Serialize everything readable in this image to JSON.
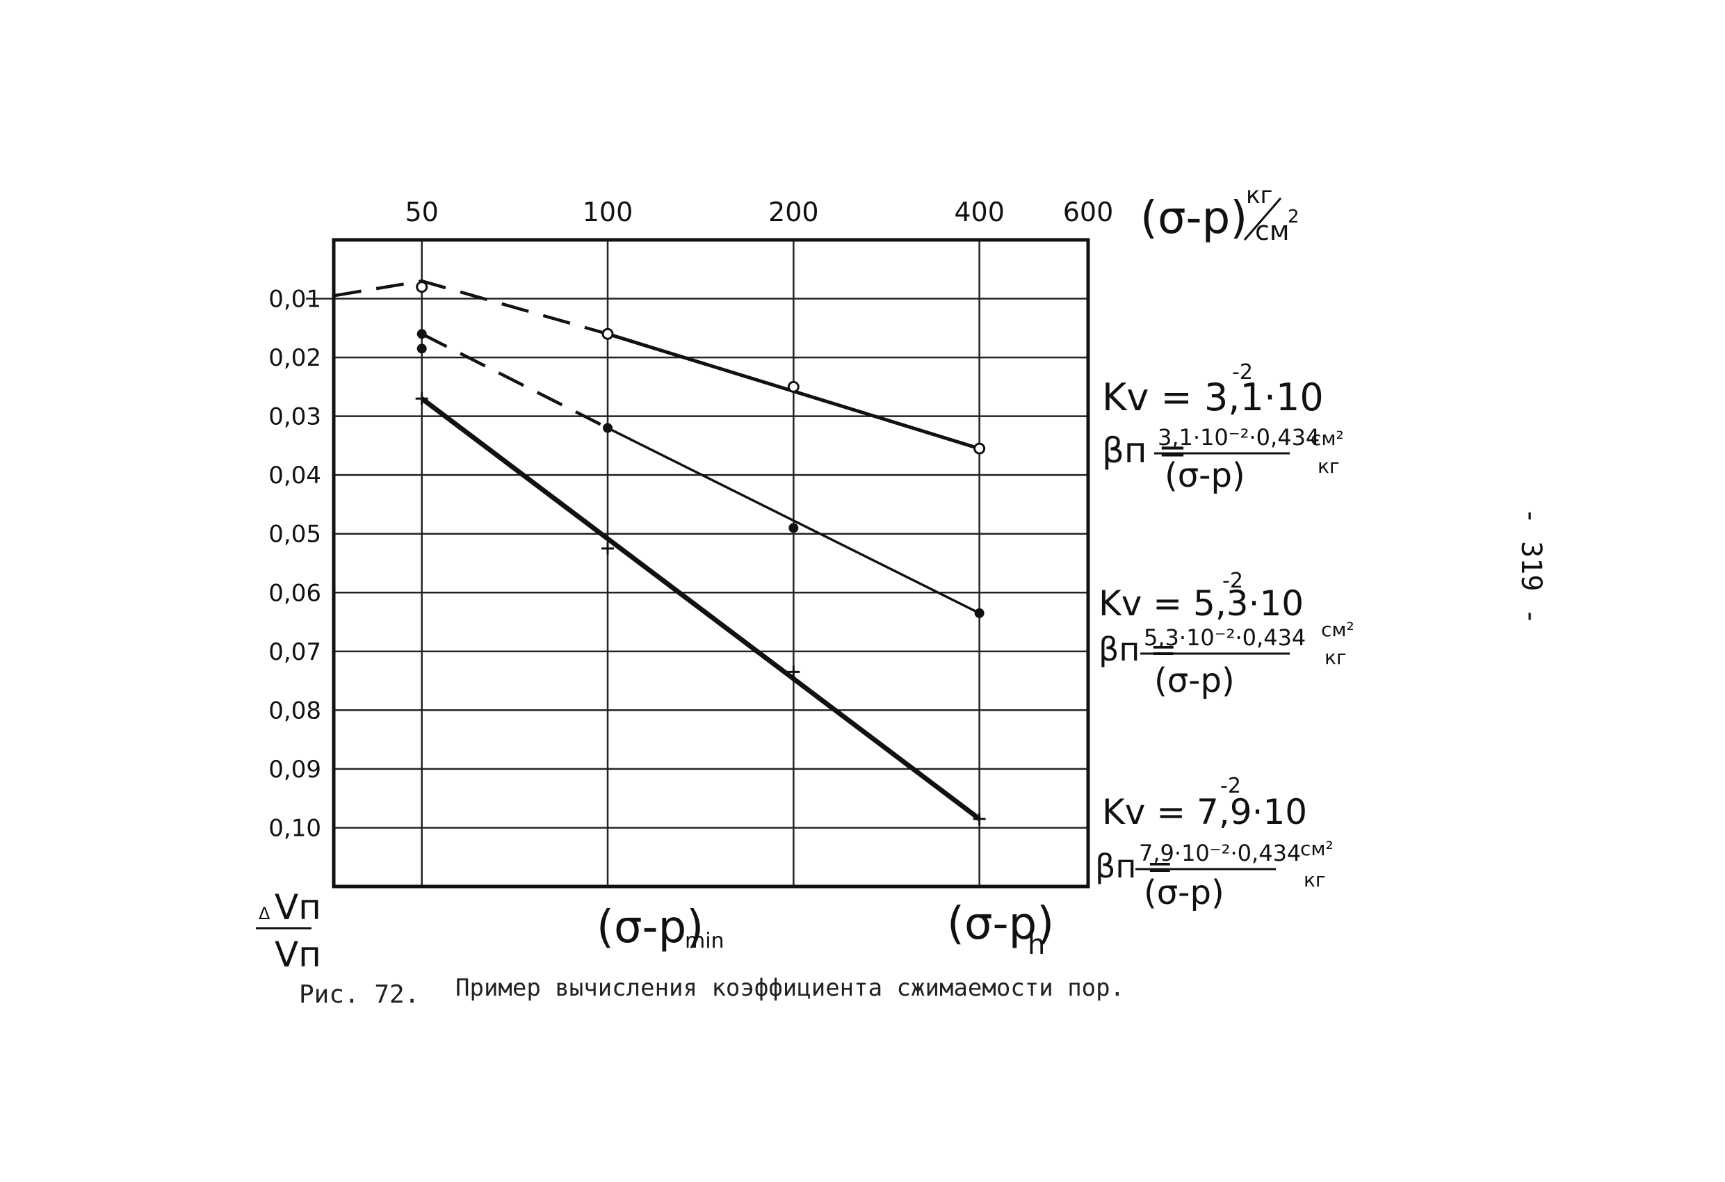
{
  "page_number": "- 319 -",
  "caption": {
    "label": "Рис. 72.",
    "text": "Пример вычисления коэффициента сжимаемости пор."
  },
  "axis_labels": {
    "top_expression": "(σ-p)",
    "top_unit_num": "кг",
    "top_unit_den": "см",
    "top_unit_exp": "2",
    "bottom_min": "(σ-p)",
    "bottom_min_sub": "min",
    "bottom_h": "(σ-p)",
    "bottom_h_sub": "h",
    "y_num_delta": "Δ",
    "y_num": "Vп",
    "y_den": "Vп"
  },
  "annotations": [
    {
      "kv": "Kv = 3,1·10",
      "kv_exp": "-2",
      "beta": "βп =",
      "beta_num": "3,1·10⁻²·0,434",
      "beta_den": "(σ-p)",
      "unit_num": "см²",
      "unit_den": "кг"
    },
    {
      "kv": "Kv = 5,3·10",
      "kv_exp": "-2",
      "beta": "βп =",
      "beta_num": "5,3·10⁻²·0,434",
      "beta_den": "(σ-p)",
      "unit_num": "см²",
      "unit_den": "кг"
    },
    {
      "kv": "Kv = 7,9·10",
      "kv_exp": "-2",
      "beta": "βп =",
      "beta_num": "7,9·10⁻²·0,434",
      "beta_den": "(σ-p)",
      "unit_num": "см²",
      "unit_den": "кг"
    }
  ],
  "chart_data": {
    "type": "line",
    "x_scale": "log",
    "x_ticks": [
      50,
      100,
      200,
      400,
      600
    ],
    "x_tick_labels": [
      "50",
      "100",
      "200",
      "400",
      "600"
    ],
    "x_range": [
      36,
      600
    ],
    "y_ticks": [
      0.01,
      0.02,
      0.03,
      0.04,
      0.05,
      0.06,
      0.07,
      0.08,
      0.09,
      0.1
    ],
    "y_tick_labels": [
      "0,01",
      "0,02",
      "0,03",
      "0,04",
      "0,05",
      "0,06",
      "0,07",
      "0,08",
      "0,09",
      "0,10"
    ],
    "y_range": [
      0,
      0.11
    ],
    "y_inverted": true,
    "grid": true,
    "series": [
      {
        "marker": "open-circle",
        "points": [
          [
            50,
            0.008
          ],
          [
            100,
            0.016
          ],
          [
            200,
            0.025
          ],
          [
            400,
            0.0355
          ]
        ],
        "dashed_segment": [
          [
            36,
            0.0095
          ],
          [
            50,
            0.007
          ],
          [
            100,
            0.016
          ]
        ],
        "solid_segment": [
          [
            100,
            0.016
          ],
          [
            400,
            0.0355
          ]
        ]
      },
      {
        "marker": "filled-circle",
        "points": [
          [
            50,
            0.016
          ],
          [
            50,
            0.0185
          ],
          [
            100,
            0.032
          ],
          [
            200,
            0.049
          ],
          [
            400,
            0.0635
          ]
        ],
        "dashed_segment": [
          [
            50,
            0.016
          ],
          [
            100,
            0.032
          ]
        ],
        "solid_segment": [
          [
            100,
            0.032
          ],
          [
            400,
            0.0635
          ]
        ]
      },
      {
        "marker": "cross",
        "points": [
          [
            50,
            0.027
          ],
          [
            100,
            0.0525
          ],
          [
            200,
            0.0735
          ],
          [
            400,
            0.0985
          ]
        ],
        "solid_segment": [
          [
            50,
            0.027
          ],
          [
            400,
            0.0985
          ]
        ]
      }
    ]
  }
}
